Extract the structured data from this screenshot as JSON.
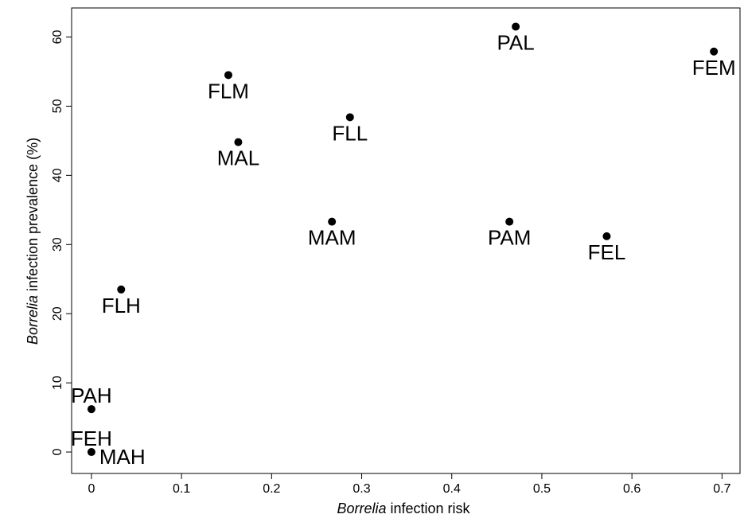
{
  "chart_data": {
    "type": "scatter",
    "title": "",
    "xlabel": {
      "italic": "Borrelia",
      "rest": " infection risk"
    },
    "ylabel": {
      "italic": "Borrelia",
      "rest": " infection prevalence (%)"
    },
    "xlim": [
      -0.022,
      0.72
    ],
    "ylim": [
      -3.1,
      64.2
    ],
    "xticks": [
      0,
      0.1,
      0.2,
      0.3,
      0.4,
      0.5,
      0.6,
      0.7
    ],
    "xtick_labels": [
      "0",
      "0.1",
      "0.2",
      "0.3",
      "0.4",
      "0.5",
      "0.6",
      "0.7"
    ],
    "yticks": [
      0,
      10,
      20,
      30,
      40,
      50,
      60
    ],
    "ytick_labels": [
      "0",
      "10",
      "20",
      "30",
      "40",
      "50",
      "60"
    ],
    "grid": false,
    "points": [
      {
        "label": "PAL",
        "x": 0.471,
        "y": 61.5,
        "label_pos": "below"
      },
      {
        "label": "FEM",
        "x": 0.691,
        "y": 57.9,
        "label_pos": "below"
      },
      {
        "label": "FLM",
        "x": 0.152,
        "y": 54.5,
        "label_pos": "below"
      },
      {
        "label": "FLL",
        "x": 0.287,
        "y": 48.4,
        "label_pos": "below"
      },
      {
        "label": "MAL",
        "x": 0.163,
        "y": 44.8,
        "label_pos": "below"
      },
      {
        "label": "MAM",
        "x": 0.267,
        "y": 33.3,
        "label_pos": "below"
      },
      {
        "label": "PAM",
        "x": 0.464,
        "y": 33.3,
        "label_pos": "below"
      },
      {
        "label": "FEL",
        "x": 0.572,
        "y": 31.2,
        "label_pos": "below"
      },
      {
        "label": "FLH",
        "x": 0.033,
        "y": 23.5,
        "label_pos": "below"
      },
      {
        "label": "PAH",
        "x": 0.0,
        "y": 6.2,
        "label_pos": "above"
      },
      {
        "label": "FEH",
        "x": 0.0,
        "y": 0.0,
        "label_pos": "above"
      },
      {
        "label": "MAH",
        "x": 0.0,
        "y": 0.0,
        "label_pos": "right"
      }
    ]
  }
}
